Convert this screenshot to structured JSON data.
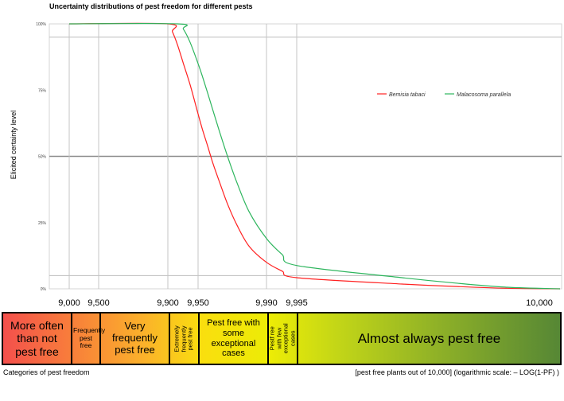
{
  "chart_data": {
    "type": "line",
    "title": "Uncertainty distributions of pest freedom for different pests",
    "ylabel": "Elicited certainty level",
    "y_ticks": [
      "0%",
      "25%",
      "50%",
      "75%",
      "100%"
    ],
    "ylim": [
      0,
      1
    ],
    "x_scale": "log(1-PF)",
    "legend_position": "top-right",
    "series": [
      {
        "name": "Bemisia tabaci",
        "color": "#ff2020",
        "x": [
          9000,
          9900,
          9910,
          9920,
          9930,
          9940,
          9950,
          9955,
          9960,
          9965,
          9970,
          9975,
          9980,
          9985,
          9990,
          9993,
          9995,
          9997,
          9998,
          9999,
          10000
        ],
        "y": [
          1.0,
          1.0,
          0.97,
          0.92,
          0.85,
          0.77,
          0.66,
          0.6,
          0.54,
          0.47,
          0.4,
          0.32,
          0.24,
          0.16,
          0.1,
          0.067,
          0.042,
          0.018,
          0.009,
          0.002,
          0.0
        ]
      },
      {
        "name": "Malacosoma parallela",
        "color": "#2db55d",
        "x": [
          9000,
          9920,
          9930,
          9940,
          9950,
          9955,
          9960,
          9965,
          9970,
          9975,
          9980,
          9985,
          9990,
          9993,
          9995,
          9997,
          9998,
          9999,
          10000
        ],
        "y": [
          1.0,
          1.0,
          0.98,
          0.93,
          0.85,
          0.8,
          0.74,
          0.67,
          0.59,
          0.5,
          0.4,
          0.29,
          0.19,
          0.13,
          0.088,
          0.042,
          0.022,
          0.006,
          0.0
        ]
      }
    ]
  },
  "pest_free_ticks": [
    "9,000",
    "9,500",
    "9,900",
    "9,950",
    "9,990",
    "9,995",
    "10,000"
  ],
  "categories": [
    {
      "label": "More often than not pest free"
    },
    {
      "label": "Frequently pest free"
    },
    {
      "label": "Very frequently pest free"
    },
    {
      "label": "Extremely frequently pest free"
    },
    {
      "label": "Pest free with some exceptional cases"
    },
    {
      "label": "Pestf ree with few exceptional cases"
    },
    {
      "label": "Almost always pest free"
    }
  ],
  "footer": {
    "left": "Categories of pest freedom",
    "right": "[pest free plants out of 10,000] (logarithmic scale: – LOG(1-PF) )"
  }
}
